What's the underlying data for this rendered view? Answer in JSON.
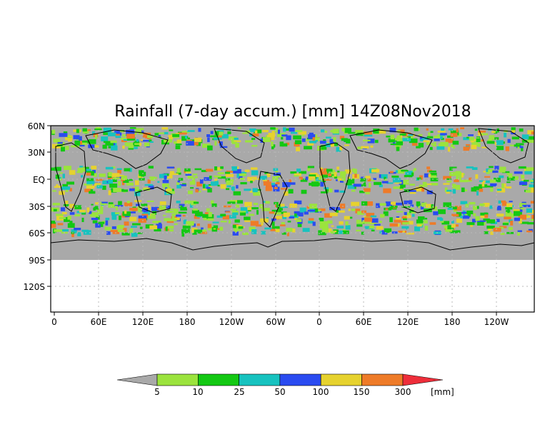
{
  "title": "Rainfall (7-day accum.) [mm] 14Z08Nov2018",
  "y_ticks": [
    "60N",
    "30N",
    "EQ",
    "30S",
    "60S",
    "90S",
    "120S"
  ],
  "x_ticks": [
    "0",
    "60E",
    "120E",
    "180",
    "120W",
    "60W",
    "0",
    "60E",
    "120E",
    "180",
    "120W"
  ],
  "colorbar": {
    "unit": "[mm]",
    "levels": [
      "5",
      "10",
      "25",
      "50",
      "100",
      "150",
      "300"
    ],
    "colors": [
      "#a9a9a9",
      "#9be33d",
      "#13c813",
      "#17c2bf",
      "#2a4bf0",
      "#e6d22e",
      "#ee7b28",
      "#ee2e3a"
    ]
  },
  "map_colors": {
    "no_rain": "#a9a9a9",
    "land_outline": "#000000",
    "grid": "#b9b9b9"
  }
}
